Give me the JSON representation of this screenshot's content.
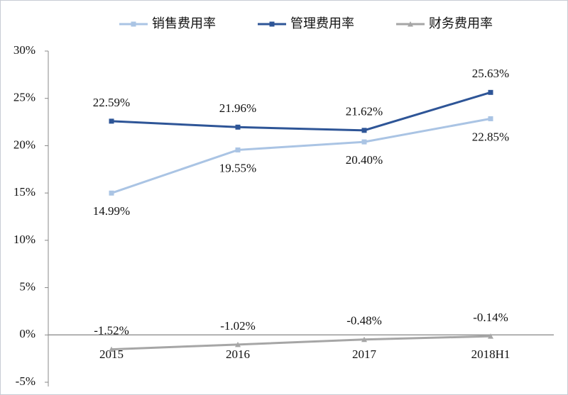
{
  "chart_data": {
    "type": "line",
    "categories": [
      "2015",
      "2016",
      "2017",
      "2018H1"
    ],
    "series": [
      {
        "name": "销售费用率",
        "color": "#aac4e4",
        "marker": "square",
        "label_position": "below",
        "values": [
          14.99,
          19.55,
          20.4,
          22.85
        ],
        "value_labels": [
          "14.99%",
          "19.55%",
          "20.40%",
          "22.85%"
        ]
      },
      {
        "name": "管理费用率",
        "color": "#2e5597",
        "marker": "square",
        "label_position": "above",
        "values": [
          22.59,
          21.96,
          21.62,
          25.63
        ],
        "value_labels": [
          "22.59%",
          "21.96%",
          "21.62%",
          "25.63%"
        ]
      },
      {
        "name": "财务费用率",
        "color": "#a6a6a6",
        "marker": "triangle",
        "label_position": "above",
        "values": [
          -1.52,
          -1.02,
          -0.48,
          -0.14
        ],
        "value_labels": [
          "-1.52%",
          "-1.02%",
          "-0.48%",
          "-0.14%"
        ]
      }
    ],
    "ylim": [
      -5,
      30
    ],
    "yticks": [
      {
        "value": -5,
        "label": "-5%"
      },
      {
        "value": 0,
        "label": "0%"
      },
      {
        "value": 5,
        "label": "5%"
      },
      {
        "value": 10,
        "label": "10%"
      },
      {
        "value": 15,
        "label": "15%"
      },
      {
        "value": 20,
        "label": "20%"
      },
      {
        "value": 25,
        "label": "25%"
      },
      {
        "value": 30,
        "label": "30%"
      }
    ],
    "legend": "top",
    "grid": false
  }
}
